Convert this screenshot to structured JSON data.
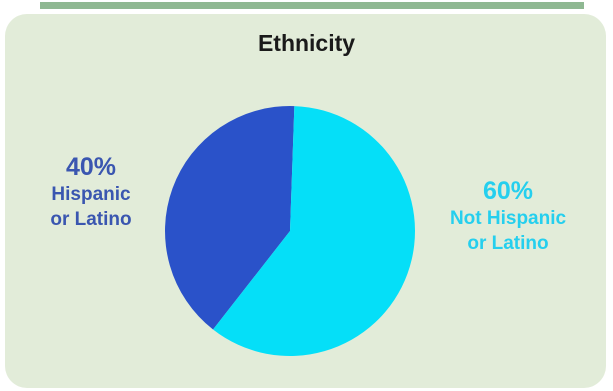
{
  "chart_data": {
    "type": "pie",
    "title": "Ethnicity",
    "slices": [
      {
        "label_line1": "Hispanic",
        "label_line2": "or Latino",
        "value": 40,
        "value_text": "40%",
        "color": "#2a52c9",
        "label_color": "#3a56b0"
      },
      {
        "label_line1": "Not Hispanic",
        "label_line2": "or Latino",
        "value": 60,
        "value_text": "60%",
        "color": "#05dff8",
        "label_color": "#25cfee"
      }
    ]
  },
  "colors": {
    "card_background": "#e2ecd9",
    "top_rule": "#8fb892"
  }
}
